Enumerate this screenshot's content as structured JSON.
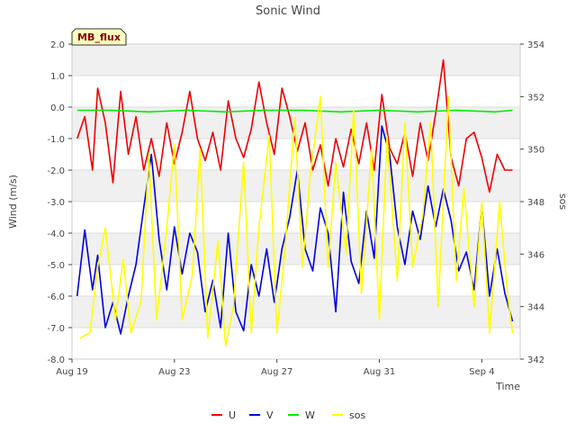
{
  "chart_data": {
    "type": "line",
    "title": "Sonic Wind",
    "xlabel": "Time",
    "ylabel_left": "Wind (m/s)",
    "ylabel_right": "sos",
    "badge": "MB_flux",
    "x_range_days": [
      0,
      17.5
    ],
    "x_ticks": [
      {
        "day": 0,
        "label": "Aug 19"
      },
      {
        "day": 4,
        "label": "Aug 23"
      },
      {
        "day": 8,
        "label": "Aug 27"
      },
      {
        "day": 12,
        "label": "Aug 31"
      },
      {
        "day": 16,
        "label": "Sep 4"
      }
    ],
    "ylim_left": [
      -8,
      2
    ],
    "y_ticks_left": [
      "-8.0",
      "-7.0",
      "-6.0",
      "-5.0",
      "-4.0",
      "-3.0",
      "-2.0",
      "-1.0",
      "0.0",
      "1.0",
      "2.0"
    ],
    "ylim_right": [
      342,
      354
    ],
    "y_ticks_right": [
      "342",
      "344",
      "346",
      "348",
      "350",
      "352",
      "354"
    ],
    "series": [
      {
        "name": "U",
        "color": "#ee0000",
        "axis": "left",
        "x": [
          0.2,
          0.5,
          0.8,
          1.0,
          1.3,
          1.6,
          1.9,
          2.2,
          2.5,
          2.8,
          3.1,
          3.4,
          3.7,
          4.0,
          4.3,
          4.6,
          4.9,
          5.2,
          5.5,
          5.8,
          6.1,
          6.4,
          6.7,
          7.0,
          7.3,
          7.6,
          7.9,
          8.2,
          8.5,
          8.8,
          9.1,
          9.4,
          9.7,
          10.0,
          10.3,
          10.6,
          10.9,
          11.2,
          11.5,
          11.8,
          12.1,
          12.4,
          12.7,
          13.0,
          13.3,
          13.6,
          13.9,
          14.2,
          14.5,
          14.8,
          15.1,
          15.4,
          15.7,
          16.0,
          16.3,
          16.6,
          16.9,
          17.2
        ],
        "values": [
          -1.0,
          -0.3,
          -2.0,
          0.6,
          -0.5,
          -2.4,
          0.5,
          -1.5,
          -0.3,
          -2.0,
          -1.0,
          -2.2,
          -0.5,
          -1.8,
          -0.8,
          0.5,
          -1.0,
          -1.7,
          -0.8,
          -2.0,
          0.2,
          -1.0,
          -1.6,
          -0.7,
          0.8,
          -0.5,
          -1.5,
          0.6,
          -0.3,
          -1.4,
          -0.5,
          -2.0,
          -1.2,
          -2.5,
          -1.0,
          -1.9,
          -0.7,
          -1.8,
          -0.5,
          -2.0,
          0.4,
          -1.3,
          -1.8,
          -0.8,
          -2.2,
          -0.5,
          -1.7,
          -0.2,
          1.5,
          -1.6,
          -2.5,
          -1.0,
          -0.8,
          -1.6,
          -2.7,
          -1.5,
          -2.0,
          -2.0
        ]
      },
      {
        "name": "V",
        "color": "#0000dd",
        "axis": "left",
        "x": [
          0.2,
          0.5,
          0.8,
          1.0,
          1.3,
          1.6,
          1.9,
          2.2,
          2.5,
          2.8,
          3.1,
          3.4,
          3.7,
          4.0,
          4.3,
          4.6,
          4.9,
          5.2,
          5.5,
          5.8,
          6.1,
          6.4,
          6.7,
          7.0,
          7.3,
          7.6,
          7.9,
          8.2,
          8.5,
          8.8,
          9.1,
          9.4,
          9.7,
          10.0,
          10.3,
          10.6,
          10.9,
          11.2,
          11.5,
          11.8,
          12.1,
          12.4,
          12.7,
          13.0,
          13.3,
          13.6,
          13.9,
          14.2,
          14.5,
          14.8,
          15.1,
          15.4,
          15.7,
          16.0,
          16.3,
          16.6,
          16.9,
          17.2
        ],
        "values": [
          -6.0,
          -3.9,
          -5.8,
          -4.7,
          -7.0,
          -6.2,
          -7.2,
          -6.0,
          -5.0,
          -3.2,
          -1.5,
          -4.2,
          -5.8,
          -3.8,
          -5.3,
          -4.0,
          -4.6,
          -6.5,
          -5.5,
          -7.0,
          -4.0,
          -6.5,
          -7.1,
          -5.0,
          -6.0,
          -4.5,
          -6.2,
          -4.5,
          -3.5,
          -2.0,
          -4.5,
          -5.2,
          -3.2,
          -4.0,
          -6.5,
          -2.7,
          -4.9,
          -5.6,
          -3.3,
          -4.8,
          -0.6,
          -1.5,
          -3.8,
          -5.0,
          -3.3,
          -4.2,
          -2.5,
          -3.8,
          -2.6,
          -3.6,
          -5.2,
          -4.6,
          -5.8,
          -3.1,
          -6.0,
          -4.5,
          -5.9,
          -6.8
        ]
      },
      {
        "name": "W",
        "color": "#00ee00",
        "axis": "left",
        "x": [
          0.2,
          1.5,
          3.0,
          4.5,
          6.0,
          7.5,
          9.0,
          10.5,
          12.0,
          13.5,
          15.0,
          16.5,
          17.2
        ],
        "values": [
          -0.1,
          -0.1,
          -0.15,
          -0.1,
          -0.15,
          -0.1,
          -0.1,
          -0.15,
          -0.1,
          -0.15,
          -0.1,
          -0.15,
          -0.1
        ]
      },
      {
        "name": "sos",
        "color": "#ffff00",
        "axis": "right",
        "x": [
          0.3,
          0.7,
          1.0,
          1.3,
          1.7,
          2.0,
          2.3,
          2.7,
          3.0,
          3.3,
          3.7,
          4.0,
          4.3,
          4.7,
          5.0,
          5.3,
          5.7,
          6.0,
          6.3,
          6.7,
          7.0,
          7.3,
          7.7,
          8.0,
          8.3,
          8.7,
          9.0,
          9.3,
          9.7,
          10.0,
          10.3,
          10.7,
          11.0,
          11.3,
          11.7,
          12.0,
          12.3,
          12.7,
          13.0,
          13.3,
          13.7,
          14.0,
          14.3,
          14.7,
          15.0,
          15.3,
          15.7,
          16.0,
          16.3,
          16.7,
          17.0,
          17.2
        ],
        "values": [
          342.8,
          343.0,
          345.5,
          347.0,
          343.5,
          345.8,
          343.0,
          344.2,
          349.8,
          343.5,
          347.0,
          350.2,
          343.5,
          345.2,
          350.0,
          342.8,
          346.5,
          342.5,
          344.0,
          349.5,
          343.0,
          347.0,
          350.5,
          343.0,
          346.0,
          351.2,
          345.5,
          349.0,
          352.0,
          345.5,
          349.5,
          346.0,
          351.5,
          344.5,
          350.0,
          343.5,
          350.5,
          345.0,
          351.0,
          345.5,
          347.5,
          351.0,
          344.0,
          352.0,
          345.0,
          348.5,
          344.0,
          348.0,
          343.0,
          348.0,
          344.5,
          343.0
        ]
      }
    ],
    "legend_position": "bottom"
  }
}
